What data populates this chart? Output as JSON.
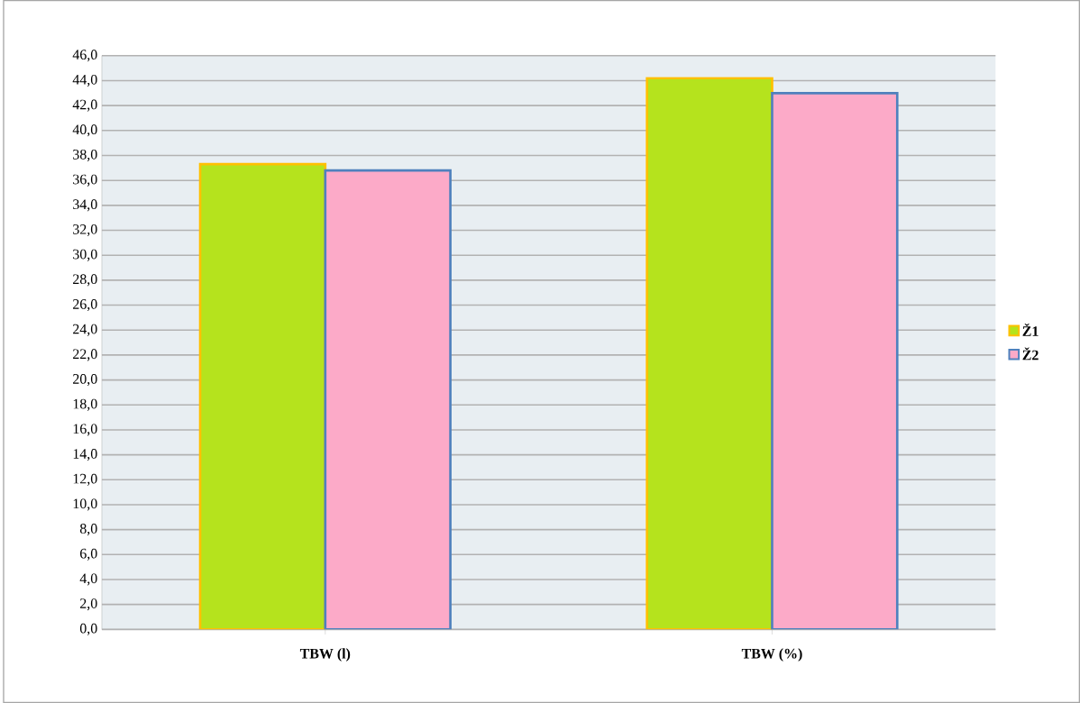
{
  "chart_data": {
    "type": "bar",
    "categories": [
      "TBW (l)",
      "TBW (%)"
    ],
    "series": [
      {
        "name": "Ž1",
        "color": "#b5e31d",
        "values": [
          37.3,
          44.2
        ]
      },
      {
        "name": "Ž2",
        "color": "#fcaac8",
        "values": [
          36.8,
          43.0
        ]
      }
    ],
    "ylim": [
      0,
      46
    ],
    "yticks": [
      {
        "value": 0,
        "label": "0,0"
      },
      {
        "value": 2,
        "label": "2,0"
      },
      {
        "value": 4,
        "label": "4,0"
      },
      {
        "value": 6,
        "label": "6,0"
      },
      {
        "value": 8,
        "label": "8,0"
      },
      {
        "value": 10,
        "label": "10,0"
      },
      {
        "value": 12,
        "label": "12,0"
      },
      {
        "value": 14,
        "label": "14,0"
      },
      {
        "value": 16,
        "label": "16,0"
      },
      {
        "value": 18,
        "label": "18,0"
      },
      {
        "value": 20,
        "label": "20,0"
      },
      {
        "value": 22,
        "label": "22,0"
      },
      {
        "value": 24,
        "label": "24,0"
      },
      {
        "value": 26,
        "label": "26,0"
      },
      {
        "value": 28,
        "label": "28,0"
      },
      {
        "value": 30,
        "label": "30,0"
      },
      {
        "value": 32,
        "label": "32,0"
      },
      {
        "value": 34,
        "label": "34,0"
      },
      {
        "value": 36,
        "label": "36,0"
      },
      {
        "value": 38,
        "label": "38,0"
      },
      {
        "value": 40,
        "label": "40,0"
      },
      {
        "value": 42,
        "label": "42,0"
      },
      {
        "value": 44,
        "label": "44,0"
      },
      {
        "value": 46,
        "label": "46,0"
      }
    ],
    "grid": "y",
    "legend": "right"
  }
}
